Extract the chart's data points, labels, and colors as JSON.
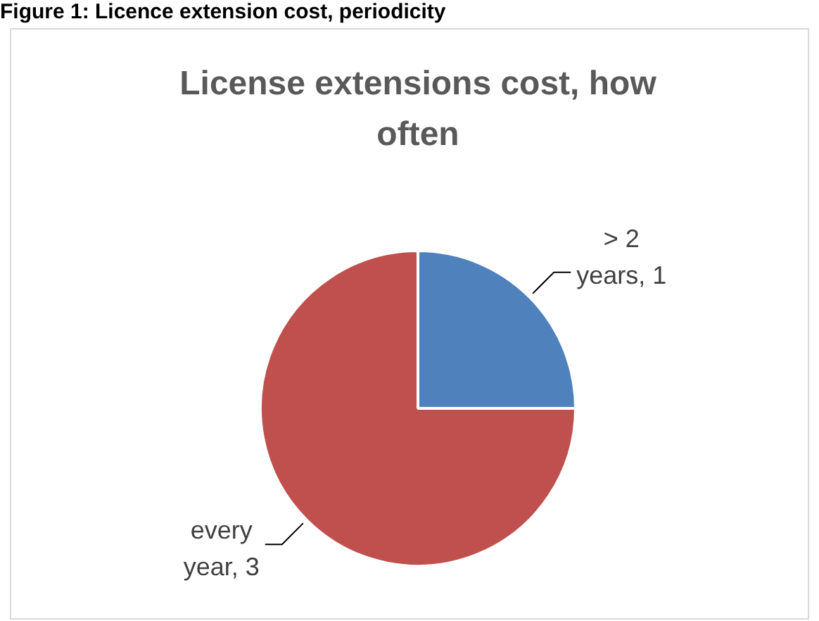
{
  "chart_data": {
    "type": "pie",
    "title": "License extensions cost, how often",
    "annotations": [
      "Figure 1: Licence extension cost, periodicity"
    ],
    "categories": [
      null,
      null
    ],
    "values": [
      1,
      3
    ],
    "value_labels": [
      "> 2 years, 1",
      "every year, 3"
    ],
    "colors": [
      "#4f81bd",
      "#c0504d"
    ],
    "legend": false
  }
}
